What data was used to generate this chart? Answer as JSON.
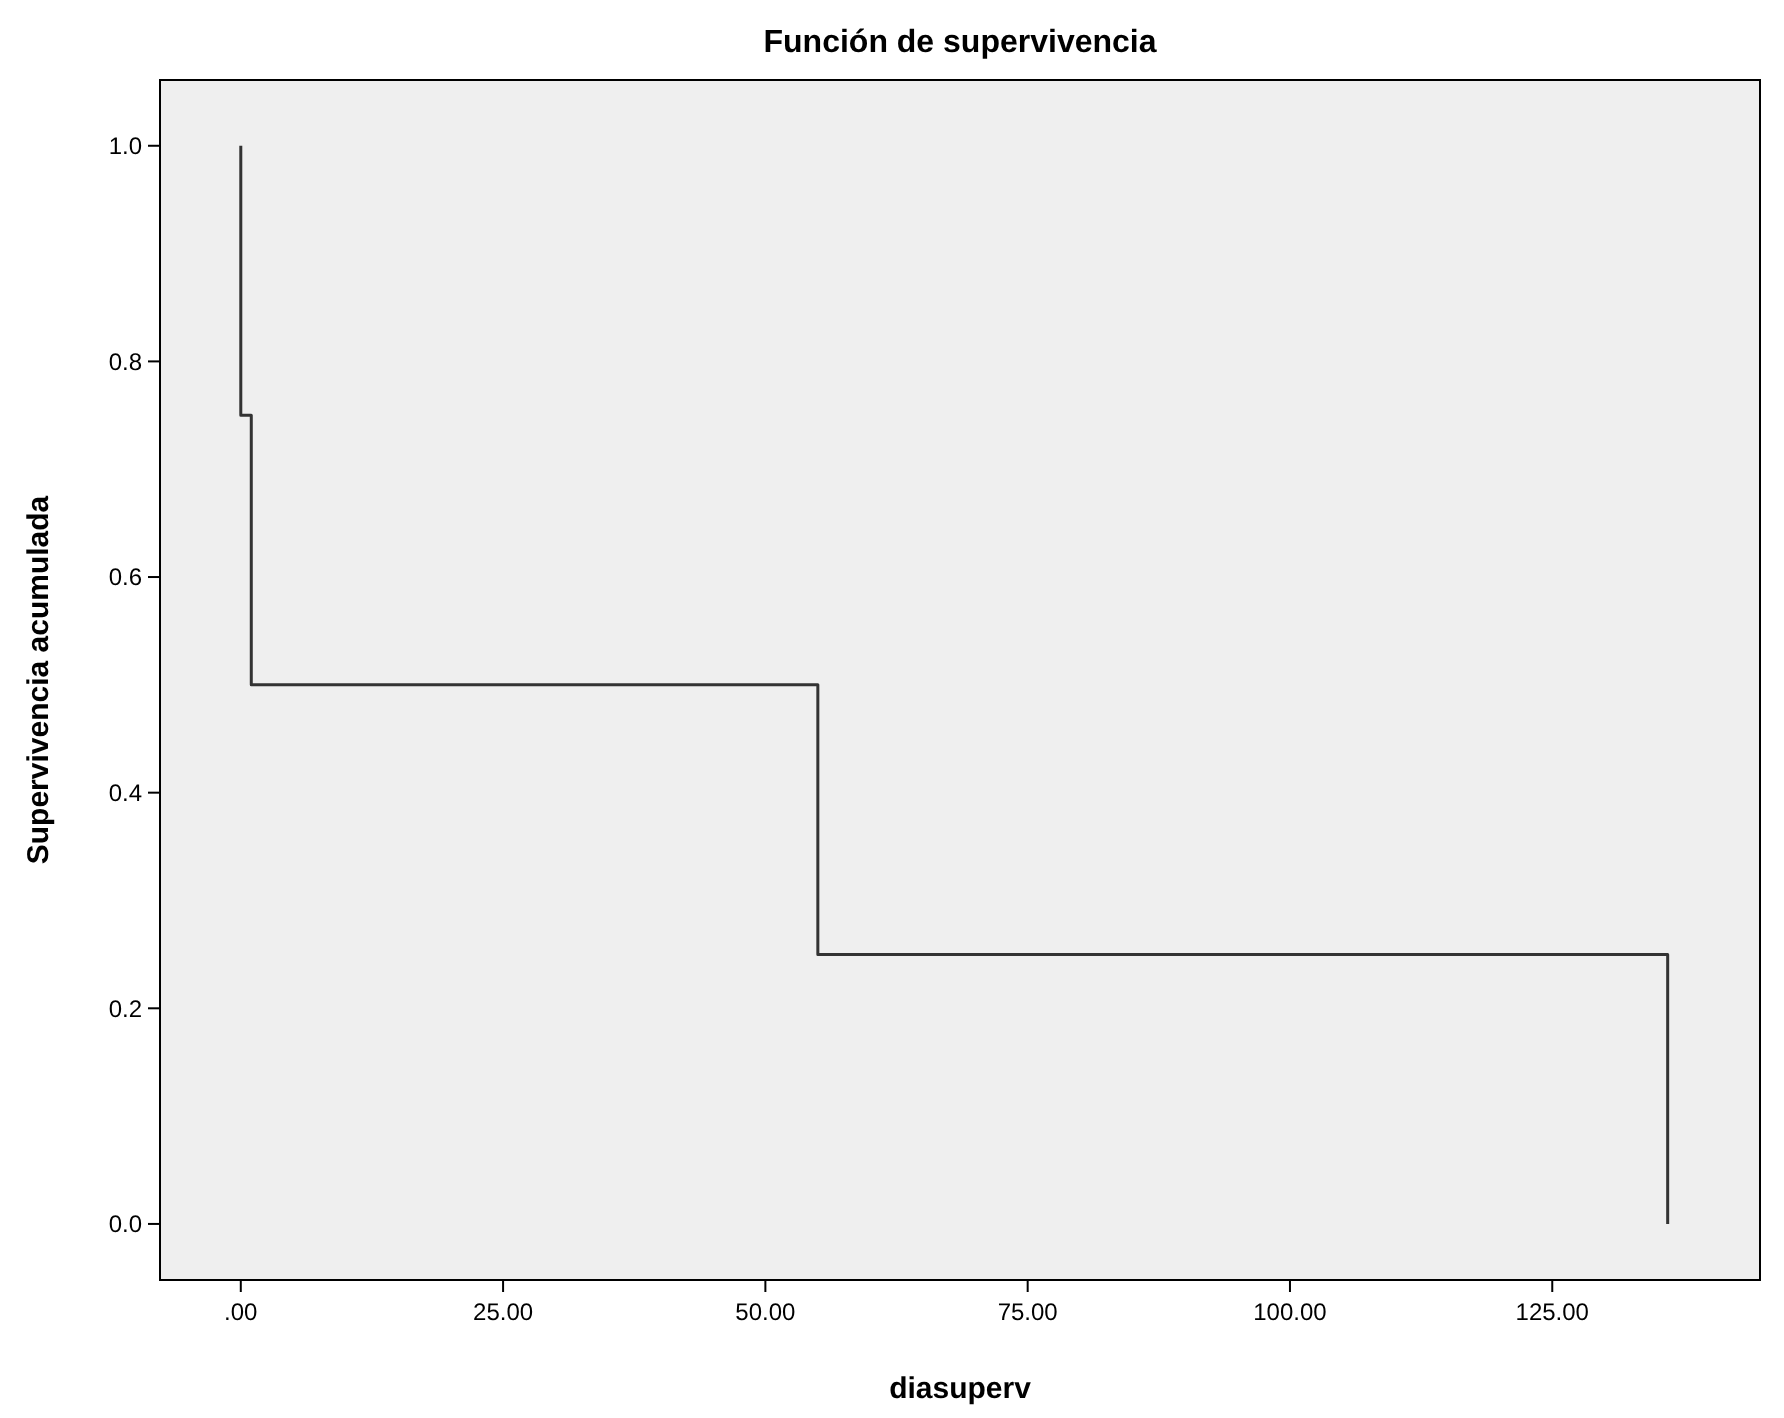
{
  "chart_data": {
    "type": "step",
    "title": "Función de supervivencia",
    "xlabel": "diasuperv",
    "ylabel": "Supervivencia acumulada",
    "x": [
      0,
      0,
      1,
      55,
      136
    ],
    "values": [
      1,
      0.75,
      0.5,
      0.25,
      0
    ],
    "color": "#333333",
    "xlim": [
      -7.7,
      144.8
    ],
    "xticks": [
      {
        "value": 0,
        "label": ".00"
      },
      {
        "value": 25,
        "label": "25.00"
      },
      {
        "value": 50,
        "label": "50.00"
      },
      {
        "value": 75,
        "label": "75.00"
      },
      {
        "value": 100,
        "label": "100.00"
      },
      {
        "value": 125,
        "label": "125.00"
      }
    ],
    "ylim": [
      -0.052,
      1.061
    ],
    "yticks": [
      {
        "value": 0,
        "label": "0.0"
      },
      {
        "value": 0.2,
        "label": "0.2"
      },
      {
        "value": 0.4,
        "label": "0.4"
      },
      {
        "value": 0.6,
        "label": "0.6"
      },
      {
        "value": 0.8,
        "label": "0.8"
      },
      {
        "value": 1,
        "label": "1.0"
      }
    ],
    "grid": false
  }
}
